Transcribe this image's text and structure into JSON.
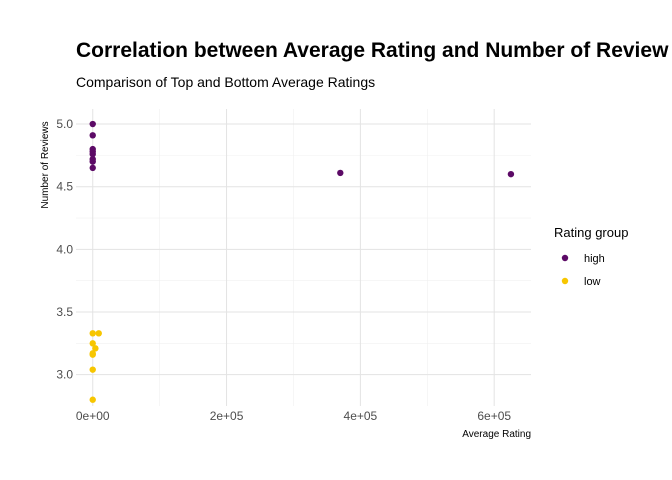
{
  "chart_data": {
    "type": "scatter",
    "title": "Correlation between Average Rating and Number of Review",
    "subtitle": "Comparison of Top and Bottom Average Ratings",
    "xlabel": "Average Rating",
    "ylabel": "Number of Reviews",
    "xlim": [
      -25000,
      655000
    ],
    "ylim": [
      2.75,
      5.12
    ],
    "x_ticks": [
      0,
      200000,
      400000,
      600000
    ],
    "x_tick_labels": [
      "0e+00",
      "2e+05",
      "4e+05",
      "6e+05"
    ],
    "y_ticks": [
      3.0,
      3.5,
      4.0,
      4.5,
      5.0
    ],
    "y_tick_labels": [
      "3.0",
      "3.5",
      "4.0",
      "4.5",
      "5.0"
    ],
    "grid": true,
    "legend": {
      "title": "Rating group",
      "placement": "right"
    },
    "series": [
      {
        "name": "high",
        "color": "#5c0a66",
        "points": [
          {
            "x": 0,
            "y": 5.0
          },
          {
            "x": 0,
            "y": 4.91
          },
          {
            "x": 0,
            "y": 4.8
          },
          {
            "x": 0,
            "y": 4.78
          },
          {
            "x": 0,
            "y": 4.76
          },
          {
            "x": 0,
            "y": 4.72
          },
          {
            "x": 0,
            "y": 4.7
          },
          {
            "x": 0,
            "y": 4.65
          },
          {
            "x": 370000,
            "y": 4.61
          },
          {
            "x": 625000,
            "y": 4.6
          }
        ]
      },
      {
        "name": "low",
        "color": "#f7c600",
        "points": [
          {
            "x": 0,
            "y": 3.33
          },
          {
            "x": 9000,
            "y": 3.33
          },
          {
            "x": 0,
            "y": 3.25
          },
          {
            "x": 4000,
            "y": 3.21
          },
          {
            "x": 0,
            "y": 3.17
          },
          {
            "x": 0,
            "y": 3.16
          },
          {
            "x": 0,
            "y": 3.04
          },
          {
            "x": 0,
            "y": 2.8
          }
        ]
      }
    ]
  }
}
